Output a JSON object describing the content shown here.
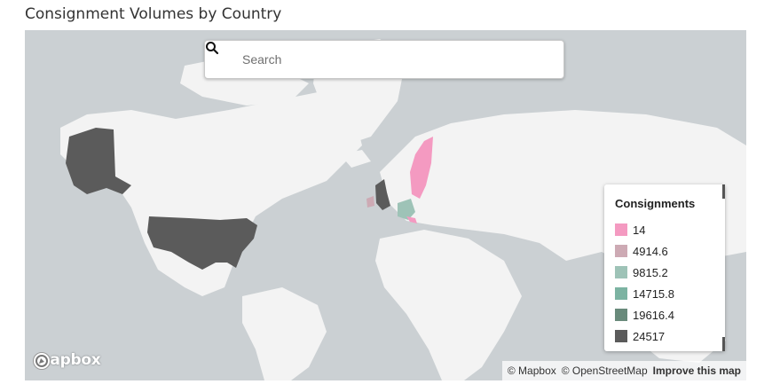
{
  "page": {
    "title": "Consignment Volumes by Country"
  },
  "search": {
    "placeholder": "Search"
  },
  "legend": {
    "title": "Consignments",
    "items": [
      {
        "label": "14",
        "color": "#f49ac1"
      },
      {
        "label": "4914.6",
        "color": "#cdaab4"
      },
      {
        "label": "9815.2",
        "color": "#9ec3b7"
      },
      {
        "label": "14715.8",
        "color": "#7cb3a2"
      },
      {
        "label": "19616.4",
        "color": "#698a7b"
      },
      {
        "label": "24517",
        "color": "#5b5b5b"
      }
    ]
  },
  "map": {
    "water_color": "#cbd0d3",
    "land_color": "#f3f3f3",
    "highlighted_countries": [
      {
        "name": "United States",
        "value": 24517,
        "color": "#5b5b5b"
      },
      {
        "name": "United Kingdom",
        "value": 24517,
        "color": "#5b5b5b"
      },
      {
        "name": "Sweden",
        "value": 14,
        "color": "#f49ac1"
      },
      {
        "name": "Finland",
        "value": 14,
        "color": "#f49ac1"
      },
      {
        "name": "Germany",
        "value": 9815.2,
        "color": "#9ec3b7"
      },
      {
        "name": "Ireland",
        "value": 4914.6,
        "color": "#cdaab4"
      }
    ]
  },
  "branding": {
    "logo_text": "mapbox",
    "logo_icon": "mapbox-logo-icon"
  },
  "attribution": {
    "mapbox": "© Mapbox",
    "osm": "© OpenStreetMap",
    "improve": "Improve this map"
  }
}
